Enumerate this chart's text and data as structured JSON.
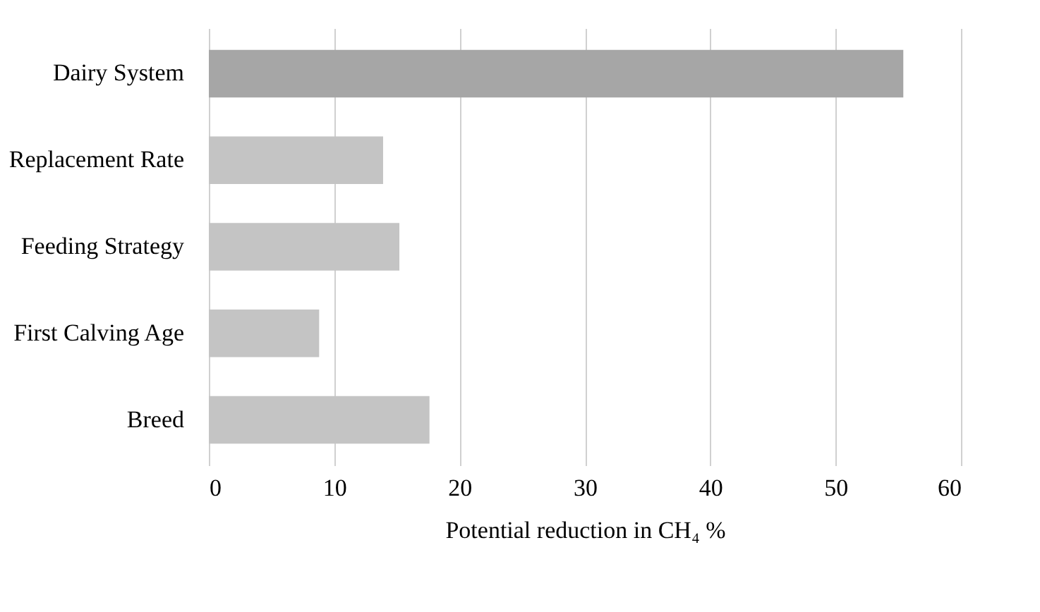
{
  "chart_data": {
    "type": "bar",
    "orientation": "horizontal",
    "xlabel": "Potential reduction in CH₄ %",
    "categories": [
      "Dairy System",
      "Replacement Rate",
      "Feeding Strategy",
      "First Calving Age",
      "Breed"
    ],
    "values": [
      55.4,
      13.9,
      15.2,
      8.8,
      17.6
    ],
    "colors": [
      "#a6a6a6",
      "#c4c4c4",
      "#c4c4c4",
      "#c4c4c4",
      "#c4c4c4"
    ],
    "xlim": [
      0,
      60
    ],
    "xticks": [
      0,
      10,
      20,
      30,
      40,
      50,
      60
    ],
    "grid": "x"
  }
}
